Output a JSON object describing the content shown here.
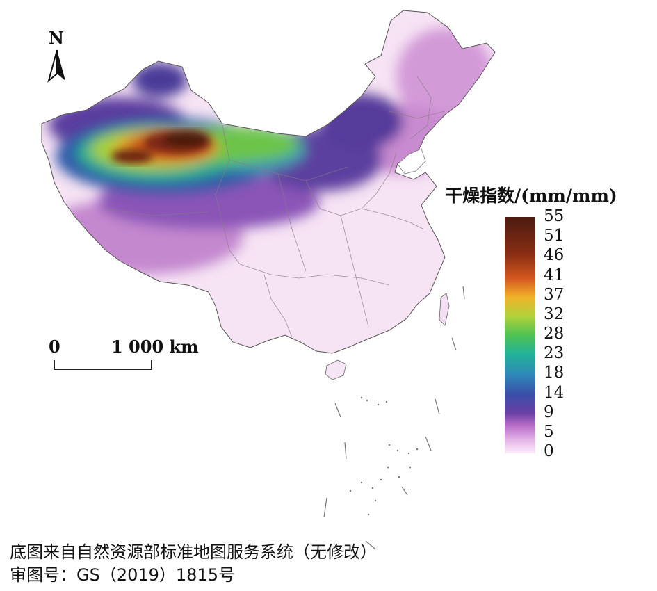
{
  "map": {
    "north_label": "N",
    "scale": {
      "start_label": "0",
      "end_label": "1 000 km"
    },
    "legend": {
      "title": "干燥指数/(mm/mm)",
      "ticks": [
        "55",
        "51",
        "46",
        "41",
        "37",
        "32",
        "28",
        "23",
        "18",
        "14",
        "9",
        "5",
        "0"
      ],
      "min": 0,
      "max": 55,
      "colormap": [
        "#fbeefb",
        "#e3b0e6",
        "#b56bc7",
        "#6a3fa6",
        "#3a4fa8",
        "#2f86b8",
        "#22b39a",
        "#4fc253",
        "#b2d23a",
        "#f0b22a",
        "#d4581f",
        "#8a2e14",
        "#4b1a10"
      ]
    },
    "credits": {
      "line1": "底图来自自然资源部标准地图服务系统（无修改）",
      "line2": "审图号：GS（2019）1815号"
    }
  }
}
